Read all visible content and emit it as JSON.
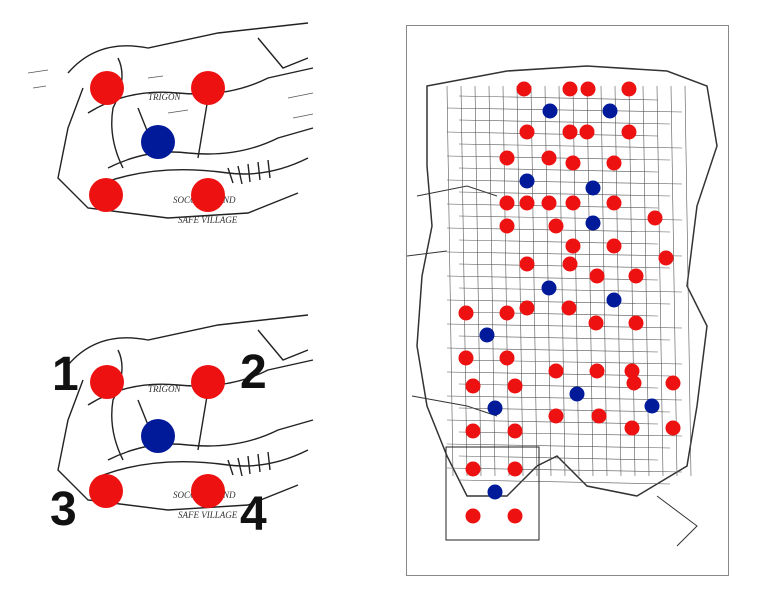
{
  "colors": {
    "red_dot": "#ee1111",
    "blue_dot": "#001a99",
    "ink": "#222222",
    "background": "#ffffff"
  },
  "detail_top": {
    "map_labels": [
      "TRIGON",
      "SOCCOMMAND",
      "SAFE VILLAGE"
    ],
    "dots": [
      {
        "id": "tl",
        "color": "red"
      },
      {
        "id": "tr",
        "color": "red"
      },
      {
        "id": "center",
        "color": "blue"
      },
      {
        "id": "bl",
        "color": "red"
      },
      {
        "id": "br",
        "color": "red"
      }
    ]
  },
  "detail_bottom": {
    "map_labels": [
      "TRIGON",
      "SOCCOMMAND",
      "SAFE VILLAGE"
    ],
    "numbers": [
      "1",
      "2",
      "3",
      "4"
    ],
    "dots": [
      {
        "id": "1",
        "color": "red"
      },
      {
        "id": "2",
        "color": "red"
      },
      {
        "id": "center",
        "color": "blue"
      },
      {
        "id": "3",
        "color": "red"
      },
      {
        "id": "4",
        "color": "red"
      }
    ]
  },
  "overview_map": {
    "grid_dot_count_red": 63,
    "grid_dot_count_blue": 11,
    "highlight": "inset-box"
  }
}
